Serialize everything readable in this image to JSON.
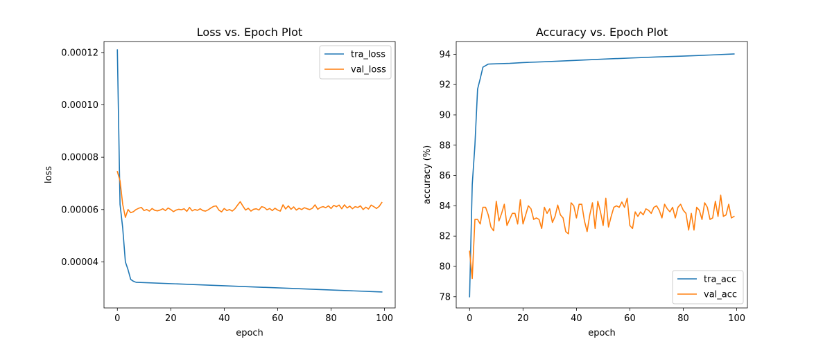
{
  "chart_data": [
    {
      "type": "line",
      "title": "Loss vs. Epoch Plot",
      "xlabel": "epoch",
      "ylabel": "loss",
      "xlim": [
        -5,
        104
      ],
      "ylim": [
        2.24e-05,
        0.0001242
      ],
      "xticks": [
        0,
        20,
        40,
        60,
        80,
        100
      ],
      "xtick_labels": [
        "0",
        "20",
        "40",
        "60",
        "80",
        "100"
      ],
      "yticks": [
        4e-05,
        6e-05,
        8e-05,
        0.0001,
        0.00012
      ],
      "ytick_labels": [
        "0.00004",
        "0.00006",
        "0.00008",
        "0.00010",
        "0.00012"
      ],
      "grid": false,
      "legend_position": "upper right",
      "series": [
        {
          "name": "tra_loss",
          "color": "#1f77b4",
          "x": [
            0,
            1,
            2,
            3,
            4,
            5,
            6,
            7,
            99
          ],
          "y": [
            0.000121,
            6.2e-05,
            5.3e-05,
            4e-05,
            3.7e-05,
            3.33e-05,
            3.26e-05,
            3.22e-05,
            2.85e-05
          ]
        },
        {
          "name": "val_loss",
          "color": "#ff7f0e",
          "x": [
            0,
            1,
            2,
            3,
            4,
            5,
            6,
            7,
            8,
            9,
            10,
            11,
            12,
            13,
            14,
            15,
            16,
            17,
            18,
            19,
            20,
            21,
            22,
            23,
            24,
            25,
            26,
            27,
            28,
            29,
            30,
            31,
            32,
            33,
            34,
            35,
            36,
            37,
            38,
            39,
            40,
            41,
            42,
            43,
            44,
            45,
            46,
            47,
            48,
            49,
            50,
            51,
            52,
            53,
            54,
            55,
            56,
            57,
            58,
            59,
            60,
            61,
            62,
            63,
            64,
            65,
            66,
            67,
            68,
            69,
            70,
            71,
            72,
            73,
            74,
            75,
            76,
            77,
            78,
            79,
            80,
            81,
            82,
            83,
            84,
            85,
            86,
            87,
            88,
            89,
            90,
            91,
            92,
            93,
            94,
            95,
            96,
            97,
            98,
            99
          ],
          "y": [
            7.45e-05,
            7.1e-05,
            6.2e-05,
            5.7e-05,
            6e-05,
            5.88e-05,
            5.92e-05,
            6e-05,
            6.05e-05,
            6.08e-05,
            5.96e-05,
            6e-05,
            5.94e-05,
            6.04e-05,
            5.97e-05,
            5.95e-05,
            5.98e-05,
            6.03e-05,
            5.96e-05,
            6.06e-05,
            6e-05,
            5.92e-05,
            5.98e-05,
            6.01e-05,
            5.99e-05,
            6.03e-05,
            5.93e-05,
            6.08e-05,
            5.95e-05,
            6e-05,
            5.97e-05,
            6.03e-05,
            5.96e-05,
            5.94e-05,
            5.99e-05,
            6.06e-05,
            6.12e-05,
            6.14e-05,
            5.98e-05,
            5.91e-05,
            6.04e-05,
            5.96e-05,
            6e-05,
            5.94e-05,
            6.03e-05,
            6.17e-05,
            6.3e-05,
            6.13e-05,
            5.98e-05,
            6.05e-05,
            5.94e-05,
            6.01e-05,
            6.03e-05,
            5.98e-05,
            6.11e-05,
            6.08e-05,
            5.99e-05,
            6.04e-05,
            5.96e-05,
            6.05e-05,
            5.98e-05,
            5.94e-05,
            6.18e-05,
            6.02e-05,
            6.14e-05,
            6.01e-05,
            6.1e-05,
            5.98e-05,
            6.05e-05,
            6e-05,
            6.07e-05,
            6.03e-05,
            6e-05,
            6.05e-05,
            6.18e-05,
            6.01e-05,
            6.08e-05,
            6.11e-05,
            6.07e-05,
            6.14e-05,
            6.04e-05,
            6.16e-05,
            6.11e-05,
            6.17e-05,
            6.03e-05,
            6.18e-05,
            6.06e-05,
            6.13e-05,
            6.03e-05,
            6.11e-05,
            6.08e-05,
            6.14e-05,
            6e-05,
            6.09e-05,
            6.02e-05,
            6.17e-05,
            6.11e-05,
            6.04e-05,
            6.12e-05,
            6.27e-05
          ]
        }
      ]
    },
    {
      "type": "line",
      "title": "Accuracy vs. Epoch Plot",
      "xlabel": "epoch",
      "ylabel": "accuracy (%)",
      "xlim": [
        -5,
        104
      ],
      "ylim": [
        77.26,
        94.84
      ],
      "xticks": [
        0,
        20,
        40,
        60,
        80,
        100
      ],
      "xtick_labels": [
        "0",
        "20",
        "40",
        "60",
        "80",
        "100"
      ],
      "yticks": [
        78,
        80,
        82,
        84,
        86,
        88,
        90,
        92,
        94
      ],
      "ytick_labels": [
        "78",
        "80",
        "82",
        "84",
        "86",
        "88",
        "90",
        "92",
        "94"
      ],
      "grid": false,
      "legend_position": "lower right",
      "series": [
        {
          "name": "tra_acc",
          "color": "#1f77b4",
          "x": [
            0,
            1,
            2,
            3,
            4,
            5,
            6,
            7,
            8,
            10,
            15,
            20,
            30,
            40,
            50,
            60,
            70,
            80,
            90,
            99
          ],
          "y": [
            78.0,
            85.4,
            88.0,
            91.7,
            92.4,
            93.15,
            93.25,
            93.35,
            93.36,
            93.37,
            93.4,
            93.45,
            93.52,
            93.6,
            93.68,
            93.75,
            93.82,
            93.88,
            93.95,
            94.02
          ]
        },
        {
          "name": "val_acc",
          "color": "#ff7f0e",
          "x": [
            0,
            1,
            2,
            3,
            4,
            5,
            6,
            7,
            8,
            9,
            10,
            11,
            12,
            13,
            14,
            15,
            16,
            17,
            18,
            19,
            20,
            21,
            22,
            23,
            24,
            25,
            26,
            27,
            28,
            29,
            30,
            31,
            32,
            33,
            34,
            35,
            36,
            37,
            38,
            39,
            40,
            41,
            42,
            43,
            44,
            45,
            46,
            47,
            48,
            49,
            50,
            51,
            52,
            53,
            54,
            55,
            56,
            57,
            58,
            59,
            60,
            61,
            62,
            63,
            64,
            65,
            66,
            67,
            68,
            69,
            70,
            71,
            72,
            73,
            74,
            75,
            76,
            77,
            78,
            79,
            80,
            81,
            82,
            83,
            84,
            85,
            86,
            87,
            88,
            89,
            90,
            91,
            92,
            93,
            94,
            95,
            96,
            97,
            98,
            99
          ],
          "y": [
            81.0,
            79.2,
            83.1,
            83.1,
            82.8,
            83.9,
            83.9,
            83.4,
            82.6,
            82.35,
            84.3,
            83.0,
            83.5,
            84.1,
            82.7,
            83.1,
            83.5,
            83.5,
            82.8,
            84.4,
            82.8,
            83.4,
            84.0,
            83.8,
            83.1,
            83.2,
            83.1,
            82.5,
            83.9,
            83.5,
            83.8,
            82.9,
            83.3,
            84.05,
            83.4,
            83.2,
            82.3,
            82.15,
            84.2,
            84.0,
            83.2,
            84.1,
            84.1,
            83.0,
            82.3,
            83.4,
            84.2,
            82.5,
            84.3,
            83.6,
            82.7,
            84.5,
            82.6,
            83.3,
            83.9,
            84.0,
            83.9,
            84.25,
            83.9,
            84.5,
            82.7,
            82.5,
            83.6,
            83.3,
            83.6,
            83.4,
            83.8,
            83.7,
            83.5,
            83.9,
            84.0,
            83.7,
            83.2,
            84.1,
            83.8,
            83.6,
            83.9,
            83.2,
            83.9,
            84.1,
            83.7,
            83.5,
            82.4,
            83.5,
            82.4,
            83.9,
            83.7,
            83.1,
            84.2,
            83.9,
            83.1,
            83.2,
            84.3,
            83.3,
            84.7,
            83.3,
            83.4,
            84.1,
            83.2,
            83.3
          ]
        }
      ]
    }
  ]
}
